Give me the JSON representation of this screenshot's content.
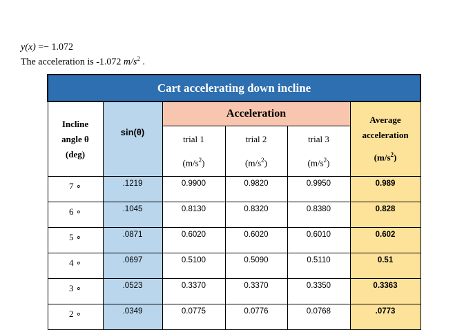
{
  "equation": {
    "lhs": "y(x)",
    "rhs": "=− 1.072"
  },
  "statement": {
    "text": "The acceleration is -1.072",
    "unit": "m/s",
    "exponent": "2",
    "end": "."
  },
  "table": {
    "title": "Cart accelerating down incline",
    "headers": {
      "angle": [
        "Incline",
        "angle θ",
        "(deg)"
      ],
      "sin": "sin(θ)",
      "acceleration": "Acceleration",
      "trials": [
        "trial 1",
        "trial 2",
        "trial 3"
      ],
      "unit": {
        "base": "(m/s",
        "exponent": "2",
        "close": ")"
      },
      "average": [
        "Average",
        "acceleration"
      ]
    },
    "rows": [
      [
        "7 ∘",
        ".1219",
        "0.9900",
        "0.9820",
        "0.9950",
        "0.989"
      ],
      [
        "6 ∘",
        ".1045",
        "0.8130",
        "0.8320",
        "0.8380",
        "0.828"
      ],
      [
        "5 ∘",
        ".0871",
        "0.6020",
        "0.6020",
        "0.6010",
        "0.602"
      ],
      [
        "4 ∘",
        ".0697",
        "0.5100",
        "0.5090",
        "0.5110",
        "0.51"
      ],
      [
        "3 ∘",
        ".0523",
        "0.3370",
        "0.3370",
        "0.3350",
        "0.3363"
      ],
      [
        "2 ∘",
        ".0349",
        "0.0775",
        "0.0776",
        "0.0768",
        ".0773"
      ]
    ]
  }
}
